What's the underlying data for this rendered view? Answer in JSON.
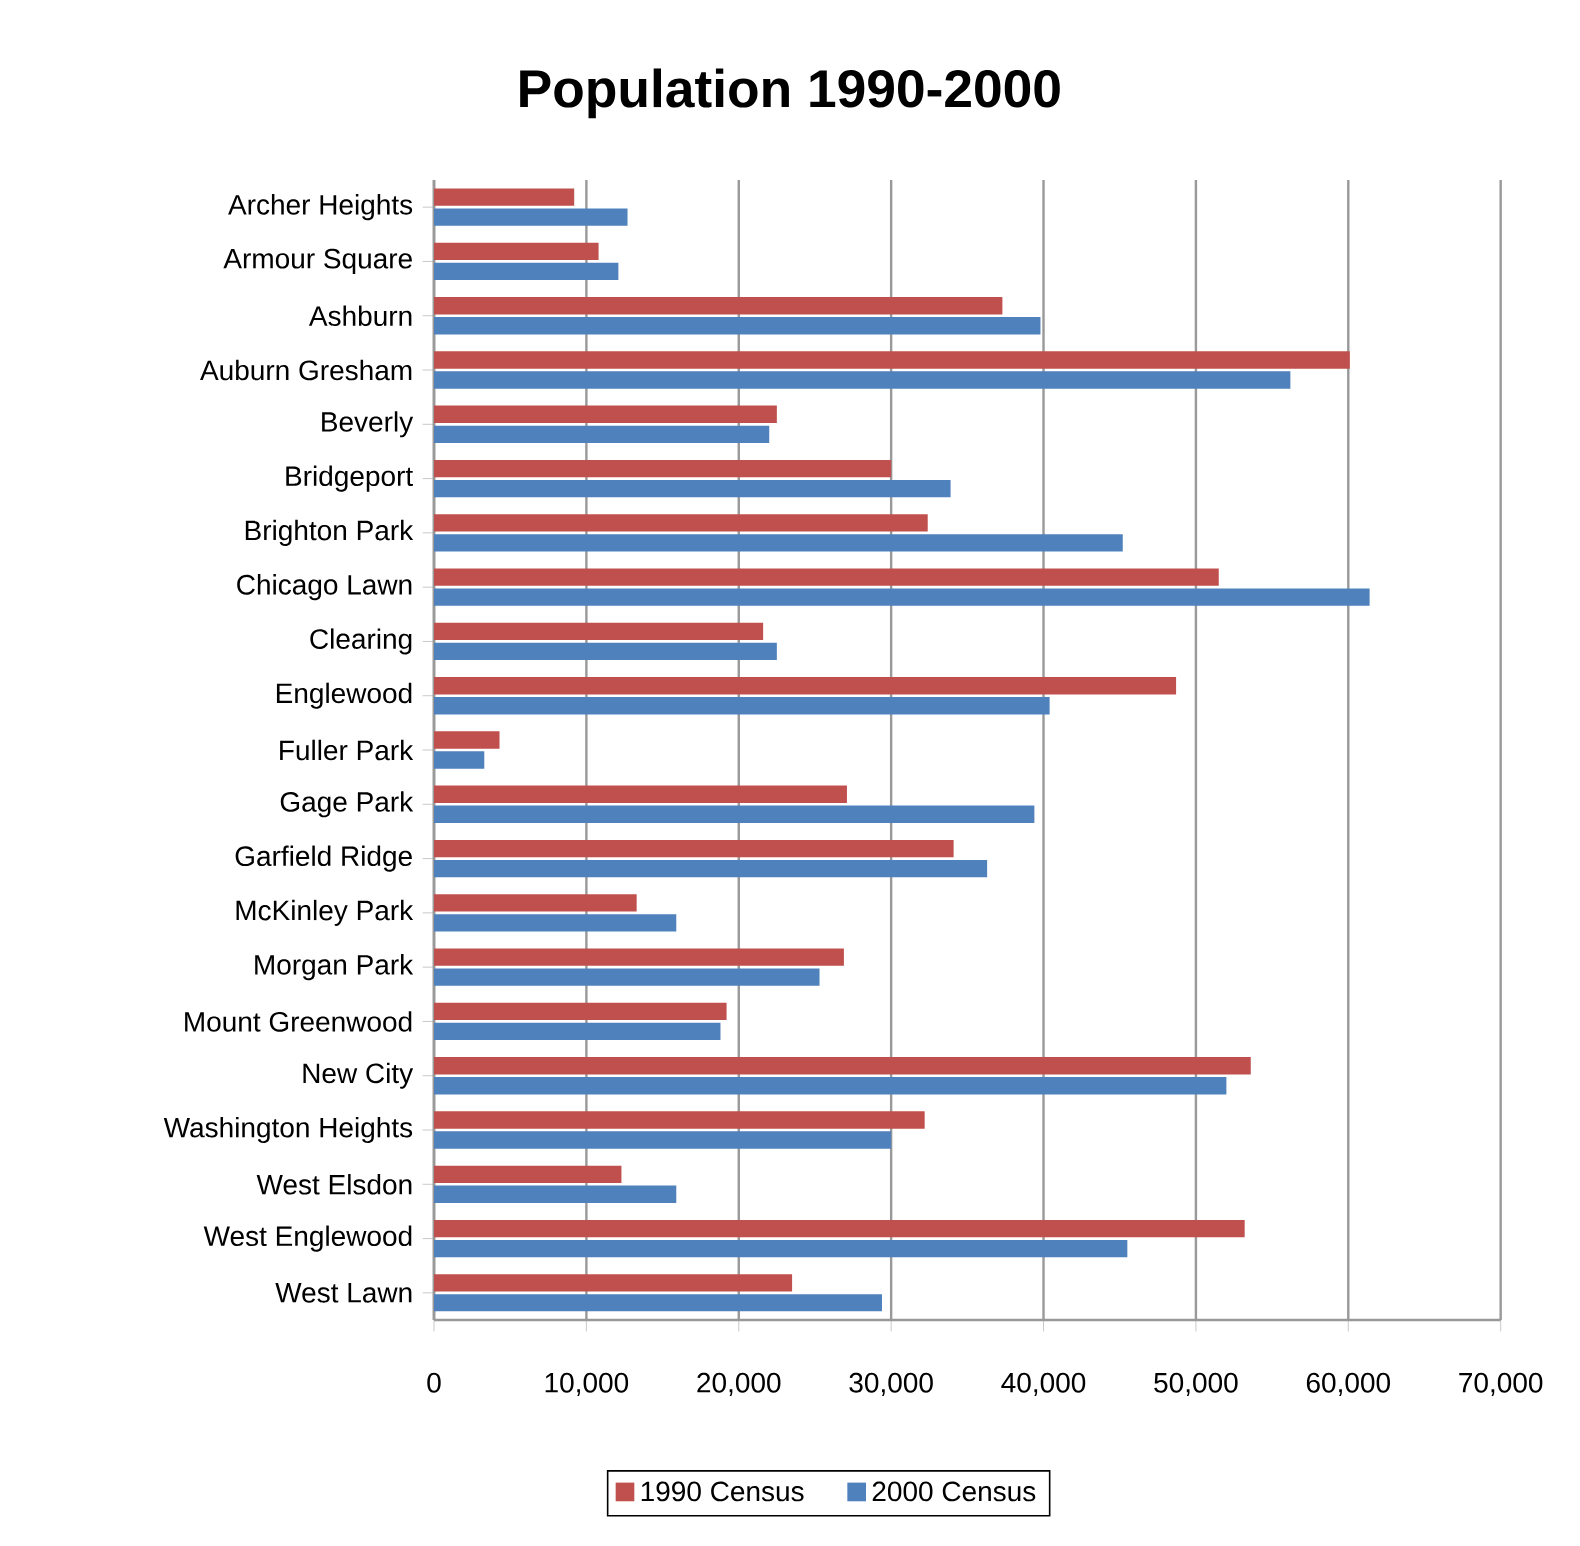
{
  "chart_data": {
    "type": "bar",
    "orientation": "horizontal",
    "title": "Population 1990-2000",
    "categories": [
      "Archer Heights",
      "Armour Square",
      "Ashburn",
      "Auburn Gresham",
      "Beverly",
      "Bridgeport",
      "Brighton Park",
      "Chicago Lawn",
      "Clearing",
      "Englewood",
      "Fuller Park",
      "Gage Park",
      "Garfield Ridge",
      "McKinley Park",
      "Morgan Park",
      "Mount Greenwood",
      "New City",
      "Washington Heights",
      "West Elsdon",
      "West Englewood",
      "West Lawn"
    ],
    "series": [
      {
        "name": "1990 Census",
        "color": "#c0504d",
        "values": [
          9200,
          10800,
          37300,
          60100,
          22500,
          30000,
          32400,
          51500,
          21600,
          48700,
          4300,
          27100,
          34100,
          13300,
          26900,
          19200,
          53600,
          32200,
          12300,
          53200,
          23500
        ]
      },
      {
        "name": "2000 Census",
        "color": "#4f81bd",
        "values": [
          12700,
          12100,
          39800,
          56200,
          22000,
          33900,
          45200,
          61400,
          22500,
          40400,
          3300,
          39400,
          36300,
          15900,
          25300,
          18800,
          52000,
          30000,
          15900,
          45500,
          29400
        ]
      }
    ],
    "xlim": [
      0,
      70000
    ],
    "xticks": [
      0,
      {
        "value": 10000,
        "label": "10,000"
      },
      {
        "value": 20000,
        "label": "20,000"
      },
      {
        "value": 30000,
        "label": "30,000"
      },
      {
        "value": 40000,
        "label": "40,000"
      },
      {
        "value": 50000,
        "label": "50,000"
      },
      {
        "value": 60000,
        "label": "60,000"
      },
      {
        "value": 70000,
        "label": "70,000"
      }
    ],
    "grid": "x",
    "legend": "bottom"
  }
}
